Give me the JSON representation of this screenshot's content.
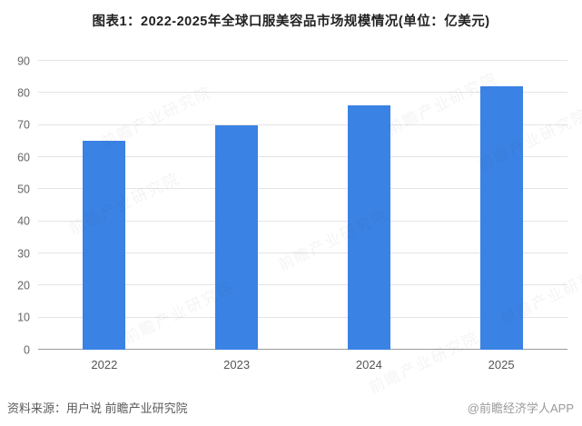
{
  "title": "图表1：2022-2025年全球口服美容品市场规模情况(单位：亿美元)",
  "chart_data": {
    "type": "bar",
    "categories": [
      "2022",
      "2023",
      "2024",
      "2025"
    ],
    "values": [
      65,
      70,
      76,
      82
    ],
    "title": "图表1：2022-2025年全球口服美容品市场规模情况(单位：亿美元)",
    "xlabel": "",
    "ylabel": "",
    "ylim": [
      0,
      90
    ],
    "ytick_step": 10,
    "grid": true,
    "legend": "none",
    "bar_color": "#3a82e4"
  },
  "colors": {
    "bar": "#3a82e4",
    "gridline": "#e4e4e4",
    "zero_axis": "#9b9b9b",
    "tick_label": "#666666",
    "title_text": "#222222",
    "source_text": "#5a5a5a",
    "credit_text": "#9a9a9a"
  },
  "watermark": {
    "text": "前瞻产业研究院"
  },
  "footer": {
    "source": "资料来源：用户说 前瞻产业研究院",
    "credit": "@前瞻经济学人APP"
  }
}
